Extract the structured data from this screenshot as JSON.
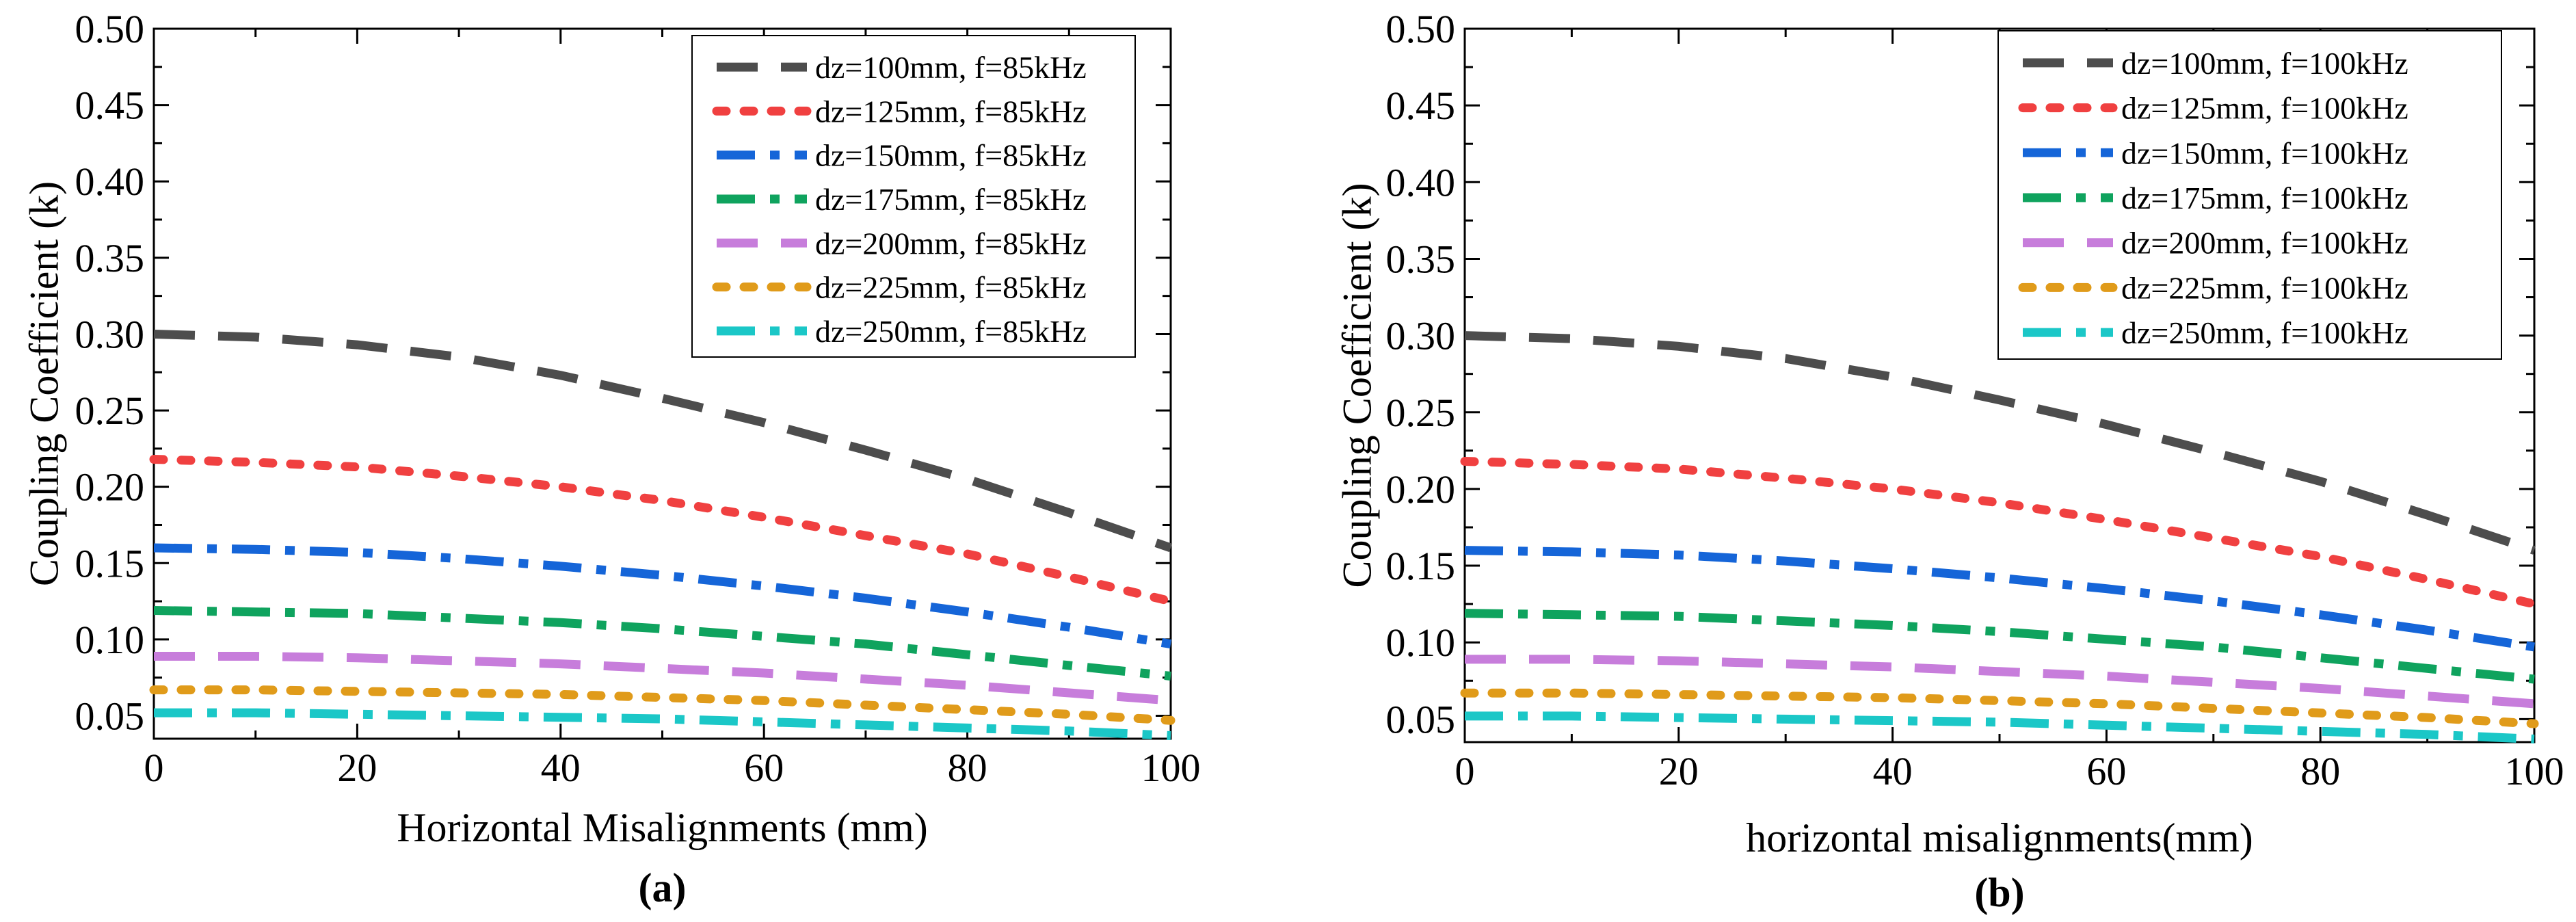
{
  "chart_data": [
    {
      "type": "line",
      "panel_label": "(a)",
      "xlabel": "Horizontal Misalignments (mm)",
      "ylabel": "Coupling Coefficient (k)",
      "xlim": [
        0,
        100
      ],
      "ylim": [
        0.035,
        0.5
      ],
      "x_ticks": [
        "0",
        "20",
        "40",
        "60",
        "80",
        "100"
      ],
      "y_ticks": [
        "0.05",
        "0.10",
        "0.15",
        "0.20",
        "0.25",
        "0.30",
        "0.35",
        "0.40",
        "0.45",
        "0.50"
      ],
      "legend_position": "top-right",
      "grid": false,
      "x": [
        0,
        10,
        20,
        30,
        40,
        50,
        60,
        70,
        80,
        90,
        100
      ],
      "series": [
        {
          "name": "dz=100mm, f=85kHz",
          "color": "#4d4d4d",
          "dash": "dash",
          "values": [
            0.3,
            0.298,
            0.293,
            0.285,
            0.273,
            0.258,
            0.242,
            0.224,
            0.205,
            0.183,
            0.16
          ]
        },
        {
          "name": "dz=125mm, f=85kHz",
          "color": "#f04040",
          "dash": "dot",
          "values": [
            0.218,
            0.216,
            0.213,
            0.207,
            0.2,
            0.191,
            0.18,
            0.168,
            0.156,
            0.141,
            0.125
          ]
        },
        {
          "name": "dz=150mm, f=85kHz",
          "color": "#1565d8",
          "dash": "dashdot",
          "values": [
            0.16,
            0.159,
            0.157,
            0.153,
            0.148,
            0.142,
            0.135,
            0.127,
            0.118,
            0.108,
            0.097
          ]
        },
        {
          "name": "dz=175mm, f=85kHz",
          "color": "#0fa35e",
          "dash": "dashdot",
          "values": [
            0.119,
            0.118,
            0.117,
            0.114,
            0.111,
            0.107,
            0.102,
            0.097,
            0.09,
            0.083,
            0.076
          ]
        },
        {
          "name": "dz=200mm, f=85kHz",
          "color": "#c77ddb",
          "dash": "dash",
          "values": [
            0.089,
            0.089,
            0.088,
            0.086,
            0.084,
            0.081,
            0.078,
            0.074,
            0.07,
            0.065,
            0.06
          ]
        },
        {
          "name": "dz=225mm, f=85kHz",
          "color": "#e09b1a",
          "dash": "dot",
          "values": [
            0.067,
            0.067,
            0.066,
            0.065,
            0.064,
            0.062,
            0.06,
            0.057,
            0.054,
            0.051,
            0.047
          ]
        },
        {
          "name": "dz=250mm, f=85kHz",
          "color": "#1bc7c7",
          "dash": "dashdot",
          "values": [
            0.052,
            0.052,
            0.051,
            0.05,
            0.049,
            0.048,
            0.046,
            0.044,
            0.042,
            0.04,
            0.037
          ]
        }
      ]
    },
    {
      "type": "line",
      "panel_label": "(b)",
      "xlabel": "horizontal misalignments(mm)",
      "ylabel": "Coupling Coefficient (k)",
      "xlim": [
        0,
        100
      ],
      "ylim": [
        0.035,
        0.5
      ],
      "x_ticks": [
        "0",
        "20",
        "40",
        "60",
        "80",
        "100"
      ],
      "y_ticks": [
        "0.05",
        "0.10",
        "0.15",
        "0.20",
        "0.25",
        "0.30",
        "0.35",
        "0.40",
        "0.45",
        "0.50"
      ],
      "legend_position": "top-right",
      "grid": false,
      "x": [
        0,
        10,
        20,
        30,
        40,
        50,
        60,
        70,
        80,
        90,
        100
      ],
      "series": [
        {
          "name": "dz=100mm, f=100kHz",
          "color": "#4d4d4d",
          "dash": "dash",
          "values": [
            0.3,
            0.298,
            0.293,
            0.285,
            0.273,
            0.258,
            0.242,
            0.224,
            0.205,
            0.183,
            0.16
          ]
        },
        {
          "name": "dz=125mm, f=100kHz",
          "color": "#f04040",
          "dash": "dot",
          "values": [
            0.218,
            0.216,
            0.213,
            0.207,
            0.2,
            0.191,
            0.18,
            0.168,
            0.156,
            0.141,
            0.125
          ]
        },
        {
          "name": "dz=150mm, f=100kHz",
          "color": "#1565d8",
          "dash": "dashdot",
          "values": [
            0.16,
            0.159,
            0.157,
            0.153,
            0.148,
            0.142,
            0.135,
            0.127,
            0.118,
            0.108,
            0.097
          ]
        },
        {
          "name": "dz=175mm, f=100kHz",
          "color": "#0fa35e",
          "dash": "dashdot",
          "values": [
            0.119,
            0.118,
            0.117,
            0.114,
            0.111,
            0.107,
            0.102,
            0.097,
            0.09,
            0.083,
            0.076
          ]
        },
        {
          "name": "dz=200mm, f=100kHz",
          "color": "#c77ddb",
          "dash": "dash",
          "values": [
            0.089,
            0.089,
            0.088,
            0.086,
            0.084,
            0.081,
            0.078,
            0.074,
            0.07,
            0.065,
            0.06
          ]
        },
        {
          "name": "dz=225mm, f=100kHz",
          "color": "#e09b1a",
          "dash": "dot",
          "values": [
            0.067,
            0.067,
            0.066,
            0.065,
            0.064,
            0.062,
            0.06,
            0.057,
            0.054,
            0.051,
            0.047
          ]
        },
        {
          "name": "dz=250mm, f=100kHz",
          "color": "#1bc7c7",
          "dash": "dashdot",
          "values": [
            0.052,
            0.052,
            0.051,
            0.05,
            0.049,
            0.048,
            0.046,
            0.044,
            0.042,
            0.04,
            0.037
          ]
        }
      ]
    }
  ]
}
